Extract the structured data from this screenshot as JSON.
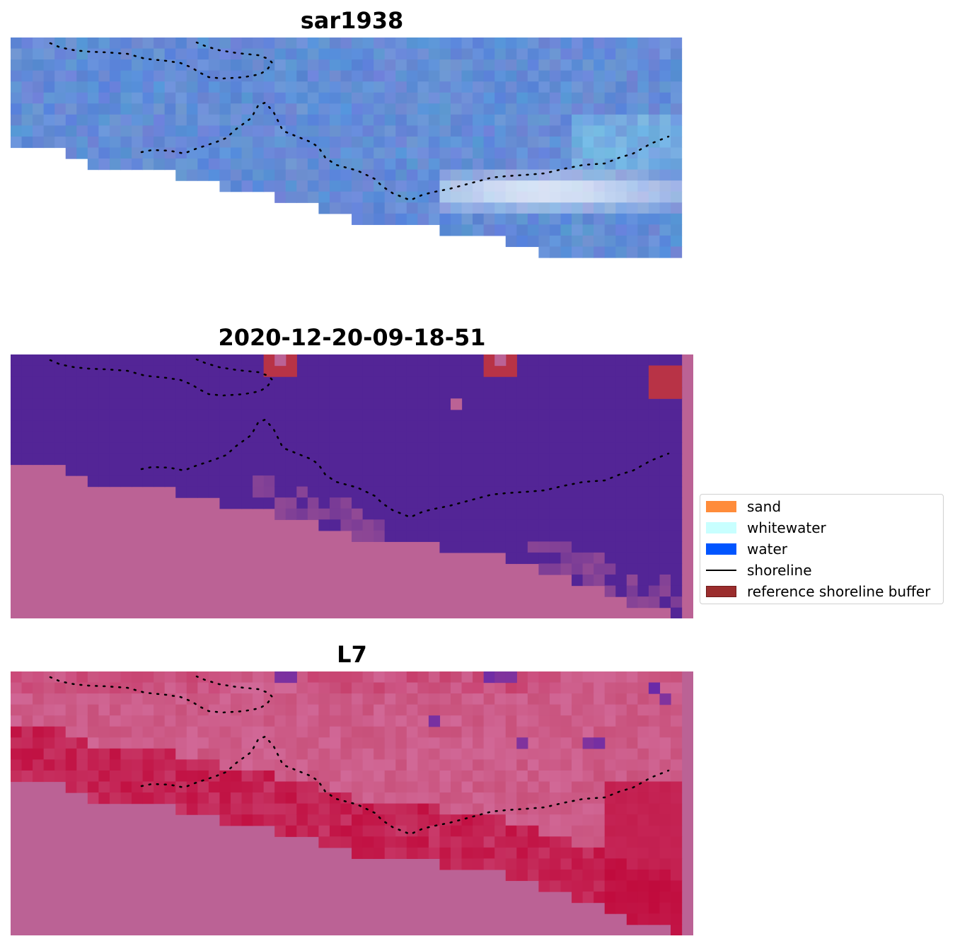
{
  "panels": [
    {
      "title": "sar1938"
    },
    {
      "title": "2020-12-20-09-18-51"
    },
    {
      "title": "L7"
    }
  ],
  "legend": {
    "items": [
      {
        "label": "sand",
        "color": "#ff8c3a",
        "kind": "patch"
      },
      {
        "label": "whitewater",
        "color": "#c8ffff",
        "kind": "patch"
      },
      {
        "label": "water",
        "color": "#0055ff",
        "kind": "patch"
      },
      {
        "label": "shoreline",
        "color": "#000000",
        "kind": "line"
      },
      {
        "label": "reference shoreline buffer",
        "color": "#9b2d2d",
        "kind": "patch"
      }
    ]
  },
  "colors": {
    "rgb_water": "#4f7fcc",
    "rgb_bright": "#ffffff",
    "class_water_dark": "#532596",
    "class_land_pink": "#bb6295",
    "class_buffer_red": "#b83346",
    "index_base": "#c8507a",
    "index_strong": "#c0083a",
    "index_purple": "#6a2aa8",
    "shoreline": "#000000"
  }
}
